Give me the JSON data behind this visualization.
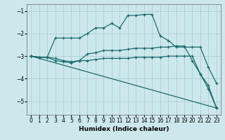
{
  "xlabel": "Humidex (Indice chaleur)",
  "background_color": "#cde8ec",
  "grid_color": "#aecfd4",
  "line_color": "#1a6b6e",
  "xlim": [
    -0.5,
    23.5
  ],
  "ylim": [
    -5.6,
    -0.7
  ],
  "yticks": [
    -5,
    -4,
    -3,
    -2,
    -1
  ],
  "xticks": [
    0,
    1,
    2,
    3,
    4,
    5,
    6,
    7,
    8,
    9,
    10,
    11,
    12,
    13,
    14,
    15,
    16,
    17,
    18,
    19,
    20,
    21,
    22,
    23
  ],
  "curves": [
    {
      "x": [
        0,
        1,
        2,
        3,
        4,
        5,
        6,
        7,
        8,
        9,
        10,
        11,
        12,
        13,
        14,
        15,
        16,
        17,
        18,
        19,
        20,
        21,
        22,
        23
      ],
      "y": [
        -3.0,
        -3.05,
        -3.05,
        -2.2,
        -2.2,
        -2.2,
        -2.2,
        -2.0,
        -1.75,
        -1.75,
        -1.55,
        -1.75,
        -1.2,
        -1.2,
        -1.15,
        -1.15,
        -2.1,
        -2.3,
        -2.6,
        -2.6,
        -2.6,
        -2.6,
        -3.5,
        -4.2
      ]
    },
    {
      "x": [
        0,
        1,
        2,
        3,
        4,
        5,
        6,
        7,
        8,
        9,
        10,
        11,
        12,
        13,
        14,
        15,
        16,
        17,
        18,
        19,
        20,
        21,
        22,
        23
      ],
      "y": [
        -3.0,
        -3.05,
        -3.05,
        -3.1,
        -3.2,
        -3.25,
        -3.2,
        -2.9,
        -2.85,
        -2.75,
        -2.75,
        -2.75,
        -2.7,
        -2.65,
        -2.65,
        -2.65,
        -2.6,
        -2.6,
        -2.55,
        -2.55,
        -3.2,
        -3.8,
        -4.3,
        -5.3
      ]
    },
    {
      "x": [
        0,
        1,
        2,
        3,
        4,
        5,
        6,
        7,
        8,
        9,
        10,
        11,
        12,
        13,
        14,
        15,
        16,
        17,
        18,
        19,
        20,
        21,
        22,
        23
      ],
      "y": [
        -3.0,
        -3.05,
        -3.05,
        -3.2,
        -3.25,
        -3.3,
        -3.2,
        -3.2,
        -3.15,
        -3.1,
        -3.1,
        -3.1,
        -3.1,
        -3.05,
        -3.05,
        -3.05,
        -3.05,
        -3.0,
        -3.0,
        -3.0,
        -3.0,
        -3.8,
        -4.45,
        -5.3
      ]
    },
    {
      "x": [
        0,
        23
      ],
      "y": [
        -3.0,
        -5.3
      ]
    }
  ]
}
